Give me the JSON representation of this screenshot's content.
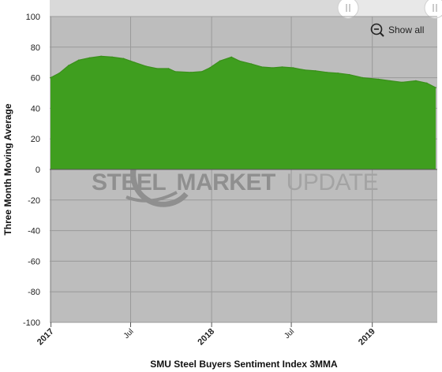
{
  "chart_data": {
    "type": "area",
    "xlabel": "SMU Steel Buyers Sentiment Index 3MMA",
    "ylabel": "Three Month Moving Average",
    "ylim": [
      -100,
      100
    ],
    "yticks": [
      100,
      80,
      60,
      40,
      20,
      0,
      -20,
      -40,
      -60,
      -80,
      -100
    ],
    "xticks": [
      {
        "label": "2017",
        "major": true,
        "date": "2017-01-01"
      },
      {
        "label": "Jul",
        "major": false,
        "date": "2017-07-01"
      },
      {
        "label": "2018",
        "major": true,
        "date": "2018-01-01"
      },
      {
        "label": "Jul",
        "major": false,
        "date": "2018-07-01"
      },
      {
        "label": "2019",
        "major": true,
        "date": "2019-01-01"
      }
    ],
    "grid": true,
    "series": [
      {
        "color": "#3f9e1f",
        "points": [
          {
            "date": "2016-12-31",
            "y": 60
          },
          {
            "date": "2017-01-20",
            "y": 63
          },
          {
            "date": "2017-02-10",
            "y": 68
          },
          {
            "date": "2017-03-05",
            "y": 71.5
          },
          {
            "date": "2017-03-30",
            "y": 73
          },
          {
            "date": "2017-04-25",
            "y": 74
          },
          {
            "date": "2017-05-20",
            "y": 73.5
          },
          {
            "date": "2017-06-15",
            "y": 72.5
          },
          {
            "date": "2017-07-10",
            "y": 70
          },
          {
            "date": "2017-08-05",
            "y": 67.5
          },
          {
            "date": "2017-08-30",
            "y": 66
          },
          {
            "date": "2017-09-25",
            "y": 66
          },
          {
            "date": "2017-10-10",
            "y": 64
          },
          {
            "date": "2017-11-15",
            "y": 63.5
          },
          {
            "date": "2017-12-10",
            "y": 64
          },
          {
            "date": "2017-12-28",
            "y": 66.5
          },
          {
            "date": "2018-01-20",
            "y": 71
          },
          {
            "date": "2018-02-15",
            "y": 73.5
          },
          {
            "date": "2018-03-05",
            "y": 71
          },
          {
            "date": "2018-04-01",
            "y": 69
          },
          {
            "date": "2018-04-25",
            "y": 67
          },
          {
            "date": "2018-05-20",
            "y": 66.5
          },
          {
            "date": "2018-06-10",
            "y": 67
          },
          {
            "date": "2018-07-05",
            "y": 66.5
          },
          {
            "date": "2018-08-01",
            "y": 65
          },
          {
            "date": "2018-08-25",
            "y": 64.5
          },
          {
            "date": "2018-09-20",
            "y": 63.5
          },
          {
            "date": "2018-10-15",
            "y": 63
          },
          {
            "date": "2018-11-10",
            "y": 62
          },
          {
            "date": "2018-12-10",
            "y": 60
          },
          {
            "date": "2019-01-15",
            "y": 59
          },
          {
            "date": "2019-02-10",
            "y": 58
          },
          {
            "date": "2019-03-10",
            "y": 57
          },
          {
            "date": "2019-04-10",
            "y": 58
          },
          {
            "date": "2019-05-05",
            "y": 56.5
          },
          {
            "date": "2019-05-25",
            "y": 53.5
          }
        ]
      }
    ],
    "colors": {
      "plot_background": "#bdbdbd",
      "outer_background": "#ffffff",
      "area_fill": "#3f9e1f",
      "area_line": "#3a8f1b",
      "grid": "#9a9a9a",
      "zero_line": "#555555"
    }
  },
  "watermark": {
    "brand": "STEEL MARKET UPDATE",
    "word1": "STEEL",
    "word2": "MARKET",
    "word3": "UPDATE"
  },
  "toolbar": {
    "show_all_label": "Show all",
    "zoom_icon": "zoom-out-icon",
    "handle_icon": "range-handle-icon"
  }
}
